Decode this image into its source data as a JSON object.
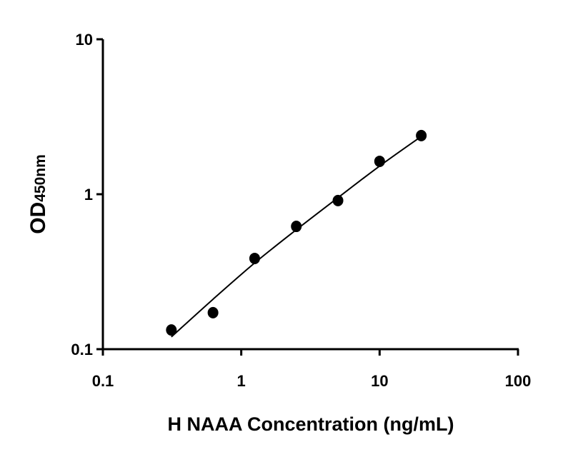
{
  "chart_data": {
    "type": "scatter",
    "title": "",
    "xlabel": "H NAAA Concentration (ng/mL)",
    "ylabel_main": "OD",
    "ylabel_sub": "450nm",
    "x_scale": "log",
    "y_scale": "log",
    "xlim": [
      0.1,
      100
    ],
    "ylim": [
      0.1,
      10
    ],
    "x_ticks": [
      0.1,
      1,
      10,
      100
    ],
    "x_tick_labels": [
      "0.1",
      "1",
      "10",
      "100"
    ],
    "y_ticks": [
      0.1,
      1,
      10
    ],
    "y_tick_labels": [
      "0.1",
      "1",
      "10"
    ],
    "grid": false,
    "points": {
      "x": [
        0.3125,
        0.625,
        1.25,
        2.5,
        5,
        10,
        20
      ],
      "y": [
        0.133,
        0.172,
        0.385,
        0.62,
        0.91,
        1.63,
        2.39
      ]
    },
    "fit_curve": {
      "x": [
        0.3125,
        0.625,
        1.25,
        2.5,
        5,
        10,
        20
      ],
      "y": [
        0.12,
        0.21,
        0.36,
        0.59,
        0.95,
        1.52,
        2.36
      ]
    },
    "colors": {
      "points": "#000000",
      "curve": "#000000",
      "axes": "#000000"
    }
  }
}
